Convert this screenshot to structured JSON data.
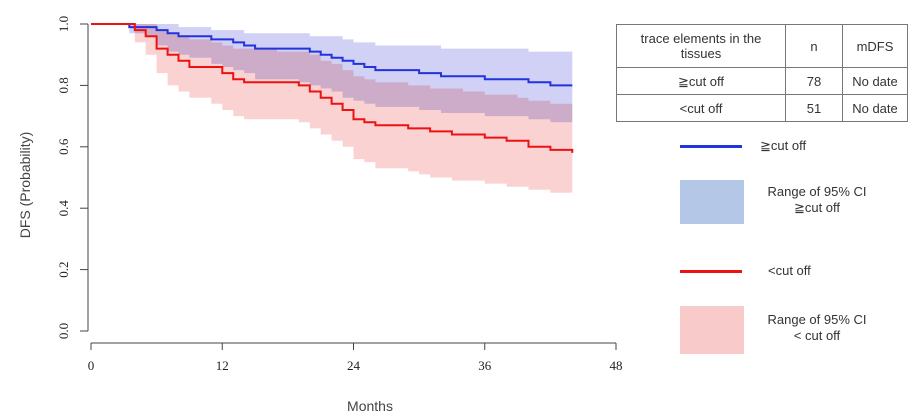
{
  "chart_data": {
    "type": "line",
    "xlabel": "Months",
    "ylabel": "DFS (Probability)",
    "xlim": [
      0,
      48
    ],
    "ylim": [
      0,
      1
    ],
    "x_ticks": [
      "0",
      "12",
      "24",
      "36",
      "48"
    ],
    "y_ticks": [
      "0.0",
      "0.2",
      "0.4",
      "0.6",
      "0.8",
      "1.0"
    ],
    "step": true,
    "series": [
      {
        "name": "≧cut off",
        "color": "#2233dd",
        "x": [
          0,
          3,
          3.5,
          5,
          6,
          7,
          8,
          9,
          11,
          12,
          13,
          14,
          15,
          17,
          19,
          20,
          21,
          22,
          23,
          24,
          25,
          26,
          27,
          28,
          30,
          31,
          32,
          34,
          36,
          38,
          40,
          42,
          44
        ],
        "y": [
          1.0,
          1.0,
          0.99,
          0.99,
          0.98,
          0.97,
          0.96,
          0.96,
          0.95,
          0.95,
          0.94,
          0.93,
          0.92,
          0.92,
          0.92,
          0.91,
          0.9,
          0.89,
          0.88,
          0.87,
          0.86,
          0.85,
          0.85,
          0.85,
          0.84,
          0.84,
          0.83,
          0.83,
          0.82,
          0.82,
          0.81,
          0.8,
          0.8
        ],
        "ci_lower": [
          1.0,
          1.0,
          0.97,
          0.96,
          0.93,
          0.91,
          0.9,
          0.89,
          0.87,
          0.86,
          0.85,
          0.84,
          0.82,
          0.82,
          0.81,
          0.8,
          0.79,
          0.78,
          0.76,
          0.75,
          0.74,
          0.73,
          0.73,
          0.73,
          0.72,
          0.72,
          0.71,
          0.71,
          0.7,
          0.7,
          0.69,
          0.68,
          0.68
        ],
        "ci_upper": [
          1.0,
          1.0,
          1.0,
          1.0,
          1.0,
          1.0,
          0.99,
          0.99,
          0.98,
          0.98,
          0.98,
          0.97,
          0.97,
          0.97,
          0.97,
          0.96,
          0.96,
          0.96,
          0.95,
          0.94,
          0.94,
          0.93,
          0.93,
          0.93,
          0.93,
          0.93,
          0.92,
          0.92,
          0.92,
          0.92,
          0.91,
          0.91,
          0.91
        ],
        "ci_color": "#c9c9f4"
      },
      {
        "name": "<cut off",
        "color": "#ee1111",
        "x": [
          0,
          3,
          4,
          5,
          6,
          7,
          8,
          9,
          11,
          12,
          13,
          14,
          17,
          19,
          20,
          21,
          22,
          23,
          24,
          25,
          26,
          28,
          29,
          30,
          31,
          33,
          34,
          36,
          38,
          39,
          40,
          42,
          44
        ],
        "y": [
          1.0,
          1.0,
          0.98,
          0.96,
          0.92,
          0.9,
          0.88,
          0.86,
          0.86,
          0.84,
          0.82,
          0.81,
          0.81,
          0.8,
          0.78,
          0.76,
          0.74,
          0.72,
          0.69,
          0.68,
          0.67,
          0.67,
          0.66,
          0.66,
          0.65,
          0.64,
          0.64,
          0.63,
          0.62,
          0.62,
          0.6,
          0.59,
          0.58
        ],
        "ci_lower": [
          1.0,
          1.0,
          0.94,
          0.9,
          0.84,
          0.8,
          0.78,
          0.76,
          0.74,
          0.72,
          0.7,
          0.69,
          0.69,
          0.68,
          0.66,
          0.64,
          0.62,
          0.6,
          0.56,
          0.55,
          0.53,
          0.53,
          0.52,
          0.51,
          0.5,
          0.49,
          0.49,
          0.48,
          0.47,
          0.47,
          0.46,
          0.45,
          0.45
        ],
        "ci_upper": [
          1.0,
          1.0,
          1.0,
          1.0,
          0.98,
          0.97,
          0.96,
          0.95,
          0.94,
          0.93,
          0.92,
          0.92,
          0.91,
          0.91,
          0.9,
          0.88,
          0.87,
          0.85,
          0.83,
          0.82,
          0.81,
          0.81,
          0.8,
          0.8,
          0.79,
          0.79,
          0.78,
          0.77,
          0.77,
          0.76,
          0.75,
          0.74,
          0.74
        ],
        "ci_color": "#f9c7c7"
      }
    ],
    "overlap_color": "#caa2d6",
    "table": {
      "header": [
        "trace elements in the tissues",
        "n",
        "mDFS"
      ],
      "rows": [
        [
          "≧cut off",
          "78",
          "No date"
        ],
        [
          "<cut off",
          "51",
          "No date"
        ]
      ]
    },
    "legend": {
      "items": [
        {
          "kind": "line",
          "label": "≧cut off",
          "color": "#2233dd"
        },
        {
          "kind": "swatch",
          "label_lines": [
            "Range of 95% CI",
            "≧cut off"
          ],
          "color": "#b4c7e7"
        },
        {
          "kind": "line",
          "label": "<cut off",
          "color": "#ee1111"
        },
        {
          "kind": "swatch",
          "label_lines": [
            "Range of 95% CI",
            "< cut off"
          ],
          "color": "#f9caca"
        }
      ]
    }
  }
}
